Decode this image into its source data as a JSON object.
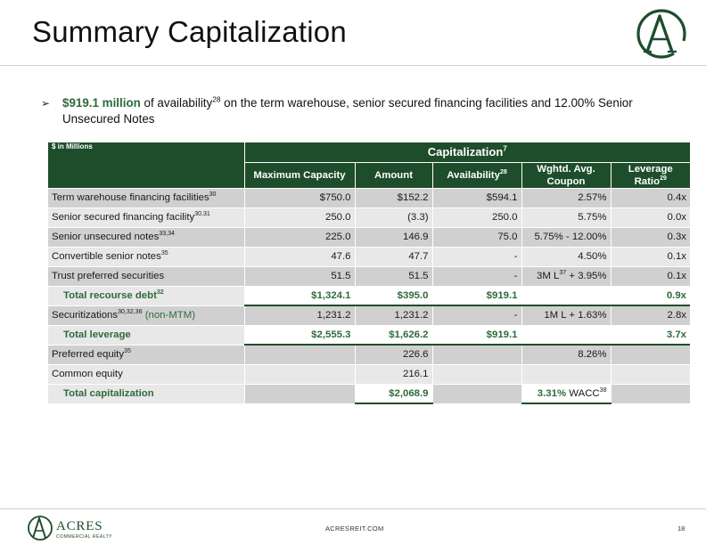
{
  "header": {
    "title": "Summary Capitalization"
  },
  "bullet": {
    "highlight": "$919.1 million",
    "text_a": " of availability",
    "sup_a": "28",
    "text_b": " on the term warehouse, senior secured financing facilities and 12.00% Senior Unsecured Notes"
  },
  "table": {
    "unit_label": "$ in Millions",
    "group_title": "Capitalization",
    "group_title_sup": "7",
    "columns": [
      {
        "label": "Maximum Capacity",
        "sup": ""
      },
      {
        "label": "Amount",
        "sup": ""
      },
      {
        "label": "Availability",
        "sup": "28"
      },
      {
        "label": "Wghtd. Avg. Coupon",
        "sup": ""
      },
      {
        "label": "Leverage Ratio",
        "sup": "29"
      }
    ],
    "rows": [
      {
        "kind": "shade",
        "label": "Term warehouse financing facilities",
        "sup": "30",
        "note": "",
        "cells": [
          "$750.0",
          "$152.2",
          "$594.1",
          "2.57%",
          "0.4x"
        ]
      },
      {
        "kind": "light",
        "label": "Senior secured financing facility",
        "sup": "30,31",
        "note": "",
        "cells": [
          "250.0",
          "(3.3)",
          "250.0",
          "5.75%",
          "0.0x"
        ]
      },
      {
        "kind": "shade",
        "label": "Senior unsecured notes",
        "sup": "33,34",
        "note": "",
        "cells": [
          "225.0",
          "146.9",
          "75.0",
          "5.75% - 12.00%",
          "0.3x"
        ]
      },
      {
        "kind": "light",
        "label": "Convertible senior notes",
        "sup": "35",
        "note": "",
        "cells": [
          "47.6",
          "47.7",
          "-",
          "4.50%",
          "0.1x"
        ]
      },
      {
        "kind": "shade",
        "label": "Trust preferred securities",
        "sup": "",
        "note": "",
        "cells": [
          "51.5",
          "51.5",
          "-",
          "3M L37 + 3.95%",
          "0.1x"
        ]
      },
      {
        "kind": "total",
        "label": "Total recourse debt",
        "sup": "32",
        "note": "",
        "cells": [
          "$1,324.1",
          "$395.0",
          "$919.1",
          "",
          "0.9x"
        ]
      },
      {
        "kind": "shade",
        "label": "Securitizations",
        "sup": "30,32,36",
        "note": "(non-MTM)",
        "cells": [
          "1,231.2",
          "1,231.2",
          "-",
          "1M L + 1.63%",
          "2.8x"
        ]
      },
      {
        "kind": "total",
        "label": "Total leverage",
        "sup": "",
        "note": "",
        "cells": [
          "$2,555.3",
          "$1,626.2",
          "$919.1",
          "",
          "3.7x"
        ]
      },
      {
        "kind": "shade",
        "label": "Preferred equity",
        "sup": "35",
        "note": "",
        "cells": [
          "",
          "226.6",
          "",
          "8.26%",
          ""
        ]
      },
      {
        "kind": "light",
        "label": "Common equity",
        "sup": "",
        "note": "",
        "cells": [
          "",
          "216.1",
          "",
          "",
          ""
        ]
      },
      {
        "kind": "total",
        "label": "Total capitalization",
        "sup": "",
        "note": "",
        "cells": [
          "",
          "$2,068.9",
          "",
          "3.31% WACC38",
          ""
        ]
      }
    ]
  },
  "footer": {
    "logo_word": "ACRES",
    "logo_sub": "COMMERCIAL REALTY",
    "url": "ACRESREIT.COM",
    "page": "18"
  },
  "colors": {
    "brand_green": "#1e4d2b",
    "accent_green": "#2e6b3a",
    "row_shade": "#d0d0d0",
    "row_light": "#e8e8e8"
  },
  "icons": {
    "brand_logo": "acres-monogram-logo",
    "bullet": "arrowhead-bullet-icon"
  }
}
